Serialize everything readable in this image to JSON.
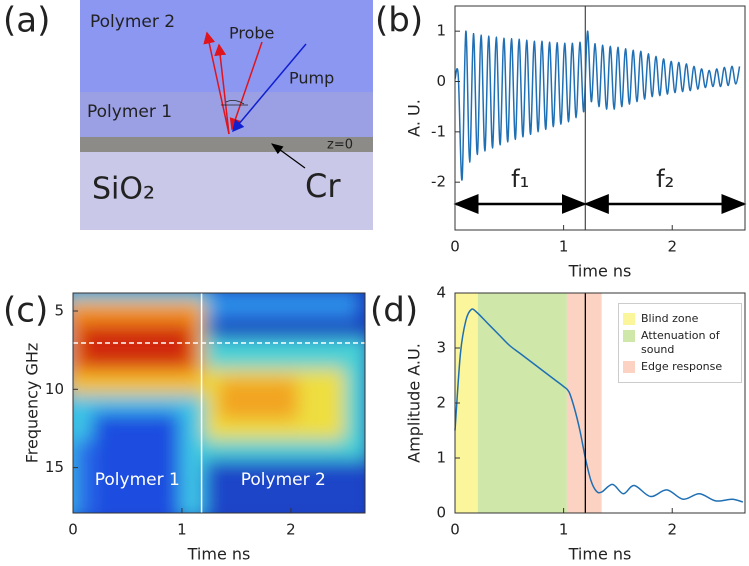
{
  "panel_labels": [
    "(a)",
    "(b)",
    "(c)",
    "(d)"
  ],
  "diagram": {
    "polymer2": "Polymer 2",
    "polymer1": "Polymer 1",
    "interface": "z=0",
    "substrate": "SiO₂",
    "metal": "Cr",
    "probe": "Probe",
    "pump": "Pump"
  },
  "chart_data": [
    {
      "type": "line",
      "xlabel": "Time ns",
      "ylabel": "A. U.",
      "color": "#1f6fb4",
      "xlim": [
        0,
        2.67
      ],
      "ylim": [
        -2.95,
        1.5
      ],
      "xticks": [
        0,
        1,
        2
      ],
      "yticks": [
        -2,
        -1,
        0,
        1
      ],
      "vline": 1.2,
      "annotations": [
        "f₁",
        "f₂"
      ],
      "x": [
        0,
        0.03,
        0.065,
        0.1,
        0.135,
        0.17,
        0.205,
        0.24,
        0.275,
        0.31,
        0.345,
        0.38,
        0.415,
        0.45,
        0.485,
        0.52,
        0.555,
        0.59,
        0.625,
        0.66,
        0.695,
        0.73,
        0.765,
        0.8,
        0.835,
        0.87,
        0.905,
        0.94,
        0.975,
        1.01,
        1.045,
        1.08,
        1.115,
        1.15,
        1.185,
        1.22,
        1.255,
        1.29,
        1.325,
        1.36,
        1.395,
        1.43,
        1.465,
        1.5,
        1.535,
        1.57,
        1.605,
        1.64,
        1.675,
        1.71,
        1.745,
        1.78,
        1.815,
        1.85,
        1.885,
        1.92,
        1.955,
        1.99,
        2.025,
        2.06,
        2.095,
        2.13,
        2.165,
        2.2,
        2.235,
        2.27,
        2.305,
        2.34,
        2.375,
        2.41,
        2.445,
        2.48,
        2.515,
        2.55,
        2.585,
        2.62
      ],
      "values": [
        0.05,
        0.12,
        -1.95,
        1.0,
        -1.6,
        0.95,
        -1.45,
        0.92,
        -1.38,
        0.9,
        -1.32,
        0.88,
        -1.26,
        0.86,
        -1.2,
        0.85,
        -1.15,
        0.84,
        -1.1,
        0.82,
        -1.05,
        0.8,
        -1.0,
        0.8,
        -0.95,
        0.78,
        -0.9,
        0.77,
        -0.85,
        0.76,
        -0.8,
        0.76,
        -0.72,
        0.78,
        -0.6,
        1.0,
        -0.4,
        0.75,
        -0.5,
        0.72,
        -0.55,
        0.7,
        -0.55,
        0.68,
        -0.5,
        0.65,
        -0.45,
        0.62,
        -0.4,
        0.6,
        -0.35,
        0.55,
        -0.3,
        0.5,
        -0.28,
        0.45,
        -0.25,
        0.4,
        -0.22,
        0.38,
        -0.2,
        0.35,
        -0.18,
        0.3,
        -0.15,
        0.25,
        -0.12,
        0.22,
        -0.1,
        0.25,
        -0.1,
        0.28,
        -0.08,
        0.3,
        -0.05,
        0.3
      ]
    },
    {
      "type": "heatmap",
      "xlabel": "Time ns",
      "ylabel": "Frequency GHz",
      "xlim": [
        0,
        2.68
      ],
      "ylim": [
        3.85,
        17.9
      ],
      "y_inverted": true,
      "xticks": [
        0,
        1,
        2
      ],
      "yticks": [
        5,
        10,
        15
      ],
      "vline": 1.18,
      "hline": 7.04,
      "annotations": [
        "Polymer 1",
        "Polymer 2"
      ]
    },
    {
      "type": "line",
      "xlabel": "Time ns",
      "ylabel": "Amplitude A.U.",
      "color": "#1f6fb4",
      "xlim": [
        0,
        2.67
      ],
      "ylim": [
        0,
        4
      ],
      "xticks": [
        0,
        1,
        2
      ],
      "yticks": [
        0,
        1,
        2,
        3,
        4
      ],
      "vline": 1.2,
      "regions": [
        {
          "name": "Blind zone",
          "color": "#fbf59b",
          "xlim": [
            0,
            0.21
          ]
        },
        {
          "name": "Attenuation of sound",
          "color": "#cfe7a9",
          "xlim": [
            0.21,
            1.03
          ]
        },
        {
          "name": "Edge response",
          "color": "#fcd3c3",
          "xlim": [
            1.03,
            1.35
          ]
        }
      ],
      "x": [
        0,
        0.05,
        0.1,
        0.15,
        0.2,
        0.3,
        0.4,
        0.5,
        0.6,
        0.7,
        0.8,
        0.9,
        1.0,
        1.05,
        1.1,
        1.15,
        1.2,
        1.25,
        1.3,
        1.35,
        1.45,
        1.55,
        1.65,
        1.8,
        1.95,
        2.1,
        2.25,
        2.4,
        2.55,
        2.65
      ],
      "values": [
        1.5,
        2.9,
        3.5,
        3.7,
        3.65,
        3.45,
        3.25,
        3.05,
        2.9,
        2.75,
        2.6,
        2.45,
        2.3,
        2.2,
        1.9,
        1.5,
        1.0,
        0.6,
        0.4,
        0.38,
        0.52,
        0.35,
        0.5,
        0.3,
        0.42,
        0.25,
        0.35,
        0.22,
        0.25,
        0.2
      ]
    }
  ]
}
